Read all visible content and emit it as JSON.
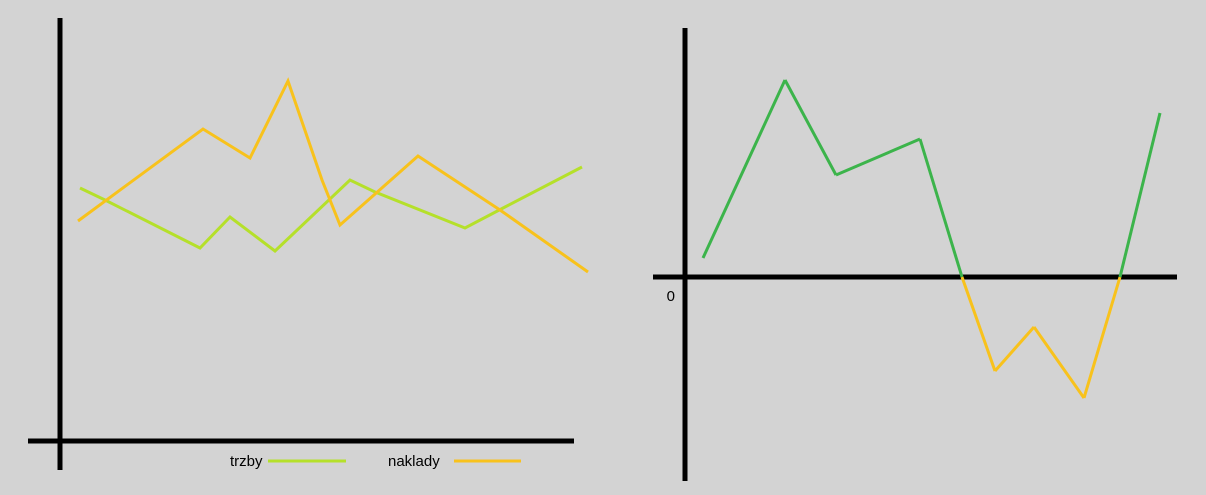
{
  "chart_data": [
    {
      "type": "line",
      "series": [
        {
          "name": "trzby",
          "color": "#b5e02a",
          "x": [
            20,
            45,
            140,
            170,
            215,
            290,
            315,
            405,
            445,
            522
          ],
          "values": [
            252,
            240,
            192,
            223,
            189,
            260,
            248,
            212,
            233,
            273
          ]
        },
        {
          "name": "naklady",
          "color": "#f8c21c",
          "x": [
            18,
            143,
            190,
            228,
            262,
            280,
            358,
            440,
            528
          ],
          "values": [
            219,
            311,
            282,
            359,
            260,
            215,
            284,
            230,
            168
          ]
        }
      ],
      "xlim": [
        0,
        528
      ],
      "ylim": [
        0,
        422
      ],
      "legend": "bottom"
    },
    {
      "type": "signed-line",
      "color_positive": "#3cb44b",
      "color_negative": "#f8c21c",
      "x": [
        18,
        100,
        151,
        235,
        277,
        310,
        349,
        399,
        435,
        475
      ],
      "values": [
        19,
        197,
        102,
        138,
        0,
        -94,
        -50,
        -121,
        0,
        164
      ],
      "xlim": [
        0,
        492
      ],
      "ylim": [
        -203,
        249
      ],
      "yticks": [
        0
      ]
    }
  ]
}
